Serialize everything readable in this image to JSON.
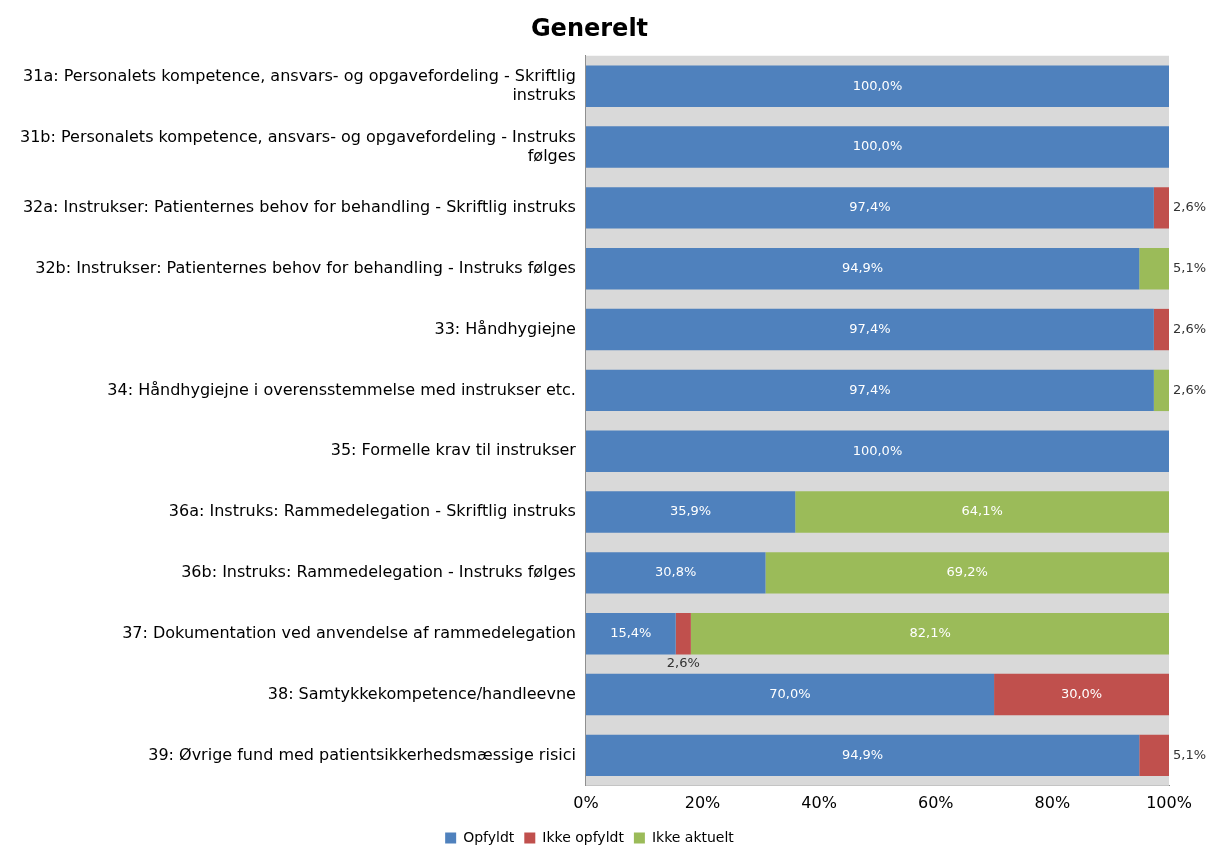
{
  "chart_data": {
    "type": "bar",
    "orientation": "horizontal",
    "stacked": true,
    "title": "Generelt",
    "categories": [
      "31a: Personalets kompetence, ansvars- og opgavefordeling - Skriftlig instruks",
      "31b: Personalets kompetence, ansvars- og opgavefordeling - Instruks følges",
      "32a: Instrukser: Patienternes behov for behandling - Skriftlig instruks",
      "32b: Instrukser: Patienternes behov for behandling - Instruks følges",
      "33: Håndhygiejne",
      "34: Håndhygiejne i overensstemmelse med instrukser etc.",
      "35: Formelle krav til instrukser",
      "36a: Instruks: Rammedelegation - Skriftlig instruks",
      "36b: Instruks: Rammedelegation - Instruks følges",
      "37: Dokumentation ved anvendelse af rammedelegation",
      "38: Samtykkekompetence/handleevne",
      "39: Øvrige fund med patientsikkerhedsmæssige risici"
    ],
    "series": [
      {
        "name": "Opfyldt",
        "color": "#4f81bd",
        "values": [
          100,
          100,
          97.4,
          94.9,
          97.4,
          97.4,
          100,
          35.9,
          30.8,
          15.4,
          70,
          94.9
        ],
        "value_labels": [
          "100,0%",
          "100,0%",
          "97,4%",
          "94,9%",
          "97,4%",
          "97,4%",
          "100,0%",
          "35,9%",
          "30,8%",
          "15,4%",
          "70,0%",
          "94,9%"
        ]
      },
      {
        "name": "Ikke opfyldt",
        "color": "#c0504d",
        "values": [
          null,
          null,
          2.6,
          null,
          2.6,
          null,
          null,
          null,
          null,
          2.6,
          30,
          5.1
        ],
        "value_labels": [
          null,
          null,
          "2,6%",
          null,
          "2,6%",
          null,
          null,
          null,
          null,
          "2,6%",
          "30,0%",
          "5,1%"
        ]
      },
      {
        "name": "Ikke aktuelt",
        "color": "#9bbb59",
        "values": [
          null,
          null,
          null,
          5.1,
          null,
          2.6,
          null,
          64.1,
          69.2,
          82.1,
          null,
          null
        ],
        "value_labels": [
          null,
          null,
          null,
          "5,1%",
          null,
          "2,6%",
          null,
          "64,1%",
          "69,2%",
          "82,1%",
          null,
          null
        ]
      }
    ],
    "xlim": [
      0,
      100
    ],
    "xticks": [
      {
        "value": 0,
        "label": "0%"
      },
      {
        "value": 20,
        "label": "20%"
      },
      {
        "value": 40,
        "label": "40%"
      },
      {
        "value": 60,
        "label": "60%"
      },
      {
        "value": 80,
        "label": "80%"
      },
      {
        "value": 100,
        "label": "100%"
      }
    ],
    "grid": false,
    "legend": "bottom"
  }
}
